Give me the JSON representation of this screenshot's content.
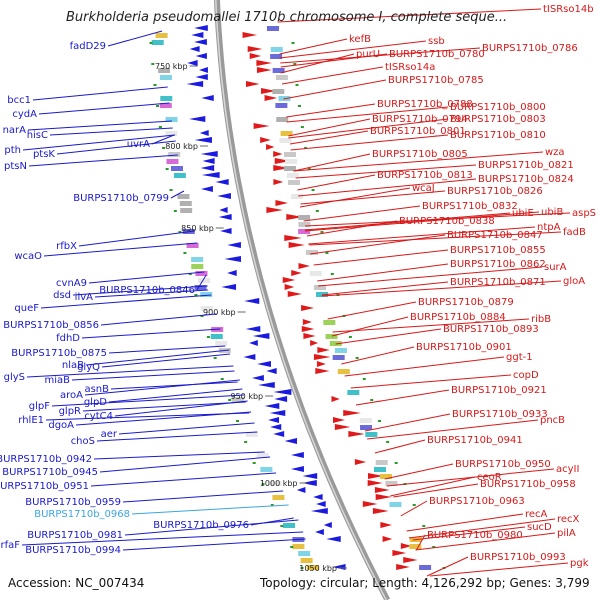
{
  "title": "Burkholderia pseudomallei 1710b chromosome I, complete seque...",
  "footer": {
    "accession": "Accession: NC_007434",
    "summary": "Topology: circular; Length: 4,126,292 bp; Genes: 3,799"
  },
  "colors": {
    "left_labels": "#1a1acc",
    "right_labels": "#d81818",
    "highlight": "#3aa6e0",
    "backbone": "#9a9a9a"
  },
  "scale_labels": [
    "750 kbp",
    "800 kbp",
    "850 kbp",
    "900 kbp",
    "950 kbp",
    "1000 kbp",
    "1050 kbp"
  ],
  "left_genes": [
    "fadD29",
    "bcc1",
    "cydA",
    "narA",
    "hisC",
    "pth",
    "ptsK",
    "ptsN",
    "uvrA",
    "BURPS1710b_0799",
    "rfbX",
    "wcaO",
    "cvnA9",
    "dsd",
    "ilvA",
    "BURPS1710b_0846",
    "queF",
    "BURPS1710b_0856",
    "fdhD",
    "BURPS1710b_0875",
    "nlaB",
    "glyQ",
    "glyS",
    "miaB",
    "asnB",
    "aroA",
    "glpD",
    "glpF",
    "glpR",
    "rhlE1",
    "cytC4",
    "dgoA",
    "aer",
    "choS",
    "BURPS1710b_0942",
    "BURPS1710b_0945",
    "BURPS1710b_0951",
    "BURPS1710b_0959",
    "BURPS1710b_0968",
    "BURPS1710b_0976",
    "BURPS1710b_0981",
    "rfaF",
    "BURPS1710b_0994"
  ],
  "right_genes": [
    "tISRso14b",
    "kefB",
    "ssb",
    "purU",
    "BURPS1710b_0780",
    "BURPS1710b_0786",
    "tISRso14a",
    "BURPS1710b_0785",
    "BURPS1710b_0788",
    "BURPS1710b_0800",
    "BURPS1710b_0794",
    "BURPS1710b_0803",
    "BURPS1710b_0801",
    "BURPS1710b_0810",
    "BURPS1710b_0805",
    "wza",
    "BURPS1710b_0821",
    "BURPS1710b_0813",
    "BURPS1710b_0824",
    "wcaJ",
    "BURPS1710b_0826",
    "BURPS1710b_0832",
    "ubiE",
    "ubiB",
    "aspS",
    "BURPS1710b_0838",
    "ntpA",
    "BURPS1710b_0847",
    "fadB",
    "BURPS1710b_0855",
    "BURPS1710b_0862",
    "surA",
    "BURPS1710b_0871",
    "gloA",
    "BURPS1710b_0879",
    "BURPS1710b_0884",
    "ribB",
    "BURPS1710b_0893",
    "BURPS1710b_0901",
    "ggt-1",
    "copD",
    "BURPS1710b_0921",
    "BURPS1710b_0933",
    "pncB",
    "BURPS1710b_0941",
    "BURPS1710b_0950",
    "acyII",
    "ceoR",
    "BURPS1710b_0958",
    "BURPS1710b_0963",
    "recA",
    "recX",
    "sucD",
    "BURPS1710b_0980",
    "pilA",
    "BURPS1710b_0993",
    "pgk"
  ]
}
